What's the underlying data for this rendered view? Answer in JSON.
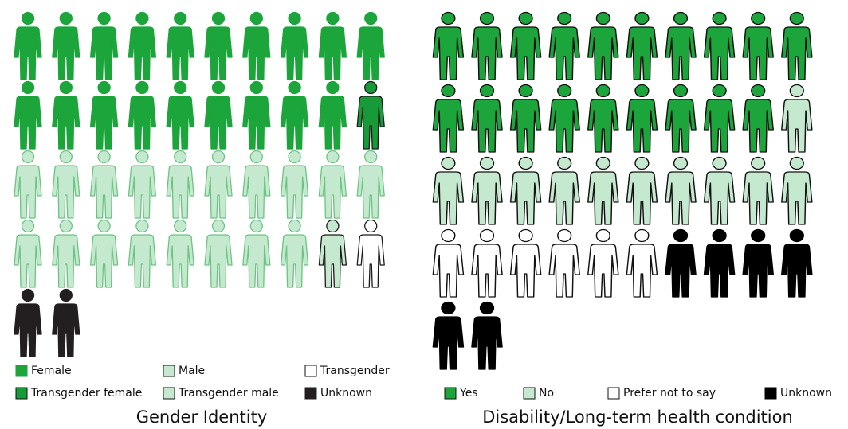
{
  "chart_data": [
    {
      "type": "pictogram",
      "title": "Gender Identity",
      "series": [
        {
          "name": "Female",
          "color": "#1ba53b",
          "outline": "#1ba53b",
          "values": 19
        },
        {
          "name": "Transgender female",
          "color": "#179a38",
          "outline": "#1a1a1a",
          "values": 1
        },
        {
          "name": "Male",
          "color": "#c5e9ce",
          "outline": "#6cc383",
          "values": 18
        },
        {
          "name": "Transgender male",
          "color": "#c5e9ce",
          "outline": "#1a1a1a",
          "values": 1
        },
        {
          "name": "Transgender",
          "color": "#ffffff",
          "outline": "#1a1a1a",
          "values": 1
        },
        {
          "name": "Unknown",
          "color": "#231f20",
          "outline": "#231f20",
          "values": 2
        }
      ]
    },
    {
      "type": "pictogram",
      "title": "Disability/Long-term health condition",
      "series": [
        {
          "name": "Yes",
          "color": "#1ba53b",
          "outline": "#111111",
          "values": 19
        },
        {
          "name": "No",
          "color": "#c5e9ce",
          "outline": "#111111",
          "values": 11
        },
        {
          "name": "Prefer not to say",
          "color": "#ffffff",
          "outline": "#111111",
          "values": 6
        },
        {
          "name": "Unknown",
          "color": "#000000",
          "outline": "#000000",
          "values": 6
        }
      ]
    }
  ]
}
